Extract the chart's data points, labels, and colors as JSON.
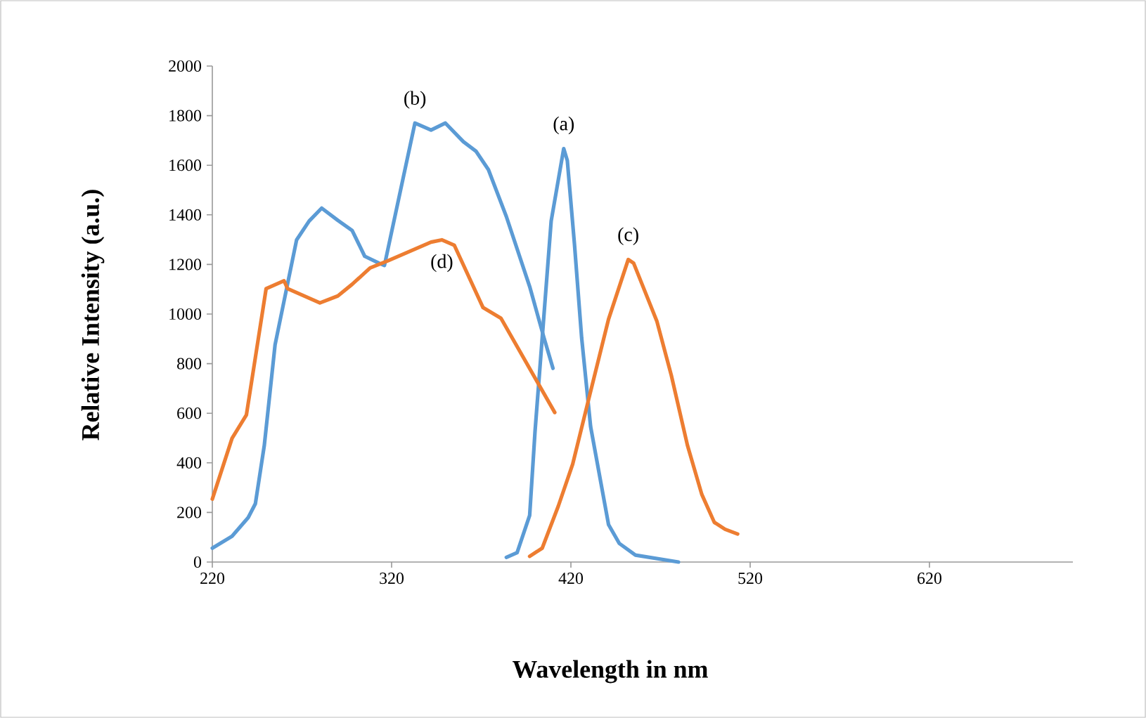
{
  "chart_data": {
    "type": "line",
    "xlabel": "Wavelength in nm",
    "ylabel": "Relative Intensity (a.u.)",
    "xlim": [
      220,
      700
    ],
    "ylim": [
      0,
      2000
    ],
    "xticks": [
      220,
      320,
      420,
      520,
      620
    ],
    "yticks": [
      0,
      200,
      400,
      600,
      800,
      1000,
      1200,
      1400,
      1600,
      1800,
      2000
    ],
    "grid": false,
    "marker": "none",
    "line_style": "solid",
    "series": [
      {
        "name": "(a)",
        "color": "#5b9bd5",
        "x": [
          384,
          390,
          397,
          400,
          405,
          409,
          416,
          418,
          422,
          426,
          431,
          441,
          447,
          456,
          480
        ],
        "values": [
          19,
          38,
          188,
          527,
          998,
          1375,
          1667,
          1619,
          1281,
          904,
          546,
          151,
          75,
          28,
          0
        ]
      },
      {
        "name": "(b)",
        "color": "#5b9bd5",
        "x": [
          220,
          231,
          240,
          244,
          249,
          255,
          267,
          274,
          281,
          290,
          298,
          305,
          313,
          316,
          333,
          342,
          350,
          360,
          367,
          374,
          384,
          397,
          405,
          410
        ],
        "values": [
          56,
          104,
          179,
          235,
          471,
          876,
          1299,
          1375,
          1427,
          1378,
          1337,
          1233,
          1205,
          1196,
          1770,
          1742,
          1770,
          1695,
          1657,
          1582,
          1393,
          1111,
          904,
          781
        ]
      },
      {
        "name": "(c)",
        "color": "#ed7d31",
        "x": [
          397,
          404,
          413,
          421,
          430,
          441,
          452,
          455,
          468,
          476,
          485,
          493,
          500,
          506,
          513
        ],
        "values": [
          23,
          56,
          226,
          395,
          659,
          979,
          1220,
          1205,
          970,
          753,
          471,
          273,
          160,
          132,
          113
        ]
      },
      {
        "name": "(d)",
        "color": "#ed7d31",
        "x": [
          220,
          231,
          239,
          250,
          260,
          262,
          280,
          290,
          298,
          308,
          318,
          342,
          348,
          355,
          371,
          381,
          411
        ],
        "values": [
          254,
          499,
          593,
          1102,
          1134,
          1102,
          1045,
          1073,
          1120,
          1186,
          1215,
          1290,
          1299,
          1277,
          1026,
          983,
          603
        ]
      }
    ]
  }
}
